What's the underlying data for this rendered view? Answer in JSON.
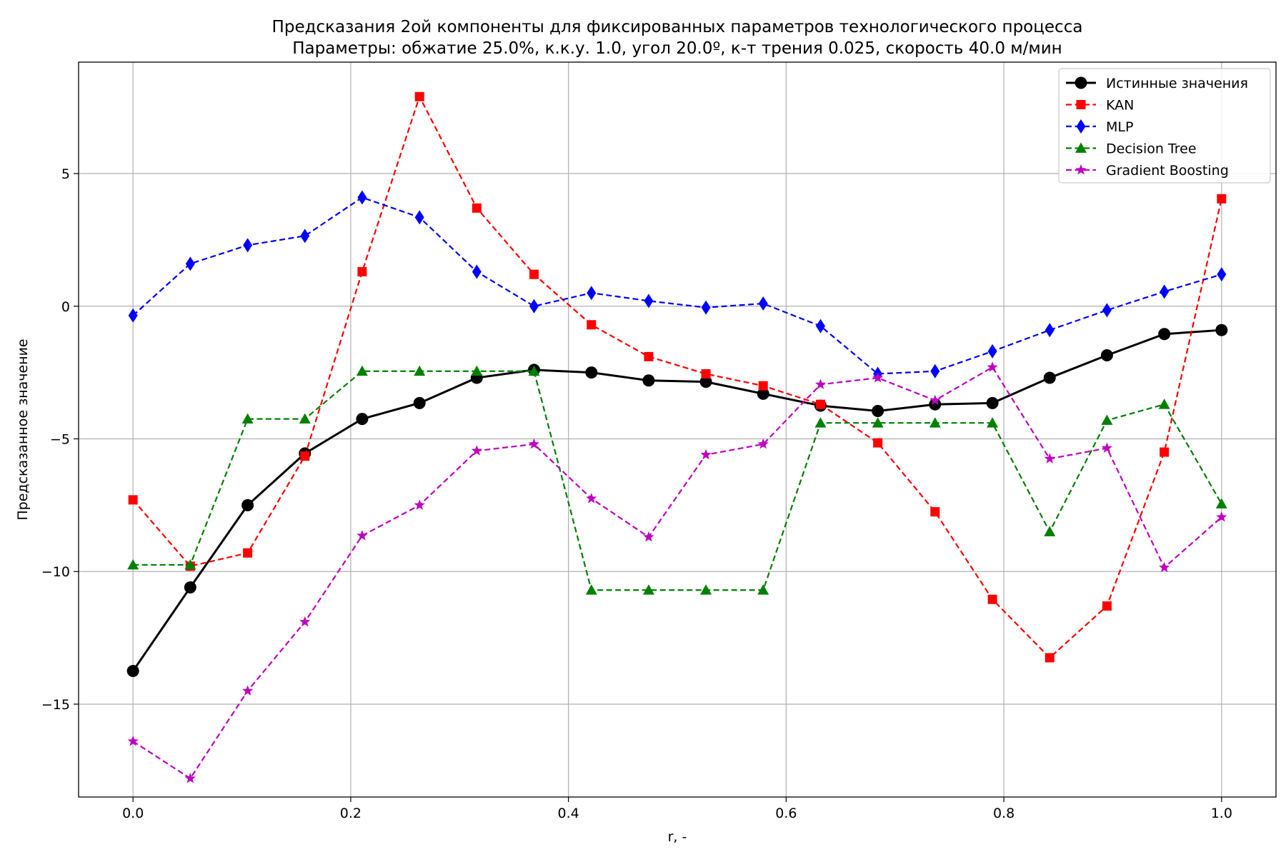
{
  "chart_data": {
    "type": "line",
    "title": "Предсказания 2ой компоненты для фиксированных параметров технологического процесса",
    "subtitle": "Параметры: обжатие 25.0%, к.к.у. 1.0, угол 20.0º, к-т трения 0.025, скорость 40.0 м/мин",
    "xlabel": "r, -",
    "ylabel": "Предсказанное значение",
    "xlim": [
      -0.05,
      1.05
    ],
    "ylim": [
      -18.5,
      9.2
    ],
    "xticks": [
      0.0,
      0.2,
      0.4,
      0.6,
      0.8,
      1.0
    ],
    "xtick_labels": [
      "0.0",
      "0.2",
      "0.4",
      "0.6",
      "0.8",
      "1.0"
    ],
    "yticks": [
      -15,
      -10,
      -5,
      0,
      5
    ],
    "ytick_labels": [
      "−15",
      "−10",
      "−5",
      "0",
      "5"
    ],
    "grid": true,
    "legend_position": "top-right",
    "x": [
      0.0,
      0.0526,
      0.1053,
      0.1579,
      0.2105,
      0.2632,
      0.3158,
      0.3684,
      0.4211,
      0.4737,
      0.5263,
      0.5789,
      0.6316,
      0.6842,
      0.7368,
      0.7895,
      0.8421,
      0.8947,
      0.9474,
      1.0
    ],
    "series": [
      {
        "name": "Истинные значения",
        "color": "#000000",
        "marker": "circle",
        "dashed": false,
        "values": [
          -13.75,
          -10.6,
          -7.5,
          -5.55,
          -4.25,
          -3.65,
          -2.7,
          -2.4,
          -2.5,
          -2.8,
          -2.85,
          -3.3,
          -3.75,
          -3.95,
          -3.7,
          -3.65,
          -2.7,
          -1.85,
          -1.05,
          -0.9
        ]
      },
      {
        "name": "KAN",
        "color": "#ff0000",
        "marker": "square",
        "dashed": true,
        "values": [
          -7.3,
          -9.8,
          -9.3,
          -5.65,
          1.3,
          7.9,
          3.7,
          1.2,
          -0.7,
          -1.9,
          -2.55,
          -3.0,
          -3.7,
          -5.15,
          -7.75,
          -11.05,
          -13.25,
          -11.3,
          -5.5,
          4.05
        ]
      },
      {
        "name": "MLP",
        "color": "#0000ff",
        "marker": "diamond",
        "dashed": true,
        "values": [
          -0.35,
          1.6,
          2.3,
          2.65,
          4.1,
          3.35,
          1.3,
          0.0,
          0.5,
          0.2,
          -0.05,
          0.1,
          -0.75,
          -2.55,
          -2.45,
          -1.7,
          -0.9,
          -0.15,
          0.55,
          1.2
        ]
      },
      {
        "name": "Decision Tree",
        "color": "#008000",
        "marker": "triangle",
        "dashed": true,
        "values": [
          -9.75,
          -9.75,
          -4.25,
          -4.25,
          -2.45,
          -2.45,
          -2.45,
          -2.45,
          -10.7,
          -10.7,
          -10.7,
          -10.7,
          -4.4,
          -4.4,
          -4.4,
          -4.4,
          -8.5,
          -4.3,
          -3.7,
          -7.45
        ]
      },
      {
        "name": "Gradient Boosting",
        "color": "#bf00bf",
        "marker": "star",
        "dashed": true,
        "values": [
          -16.4,
          -17.8,
          -14.5,
          -11.9,
          -8.65,
          -7.5,
          -5.45,
          -5.2,
          -7.25,
          -8.7,
          -5.6,
          -5.2,
          -2.95,
          -2.7,
          -3.55,
          -2.3,
          -5.75,
          -5.35,
          -9.85,
          -7.95
        ]
      }
    ]
  }
}
